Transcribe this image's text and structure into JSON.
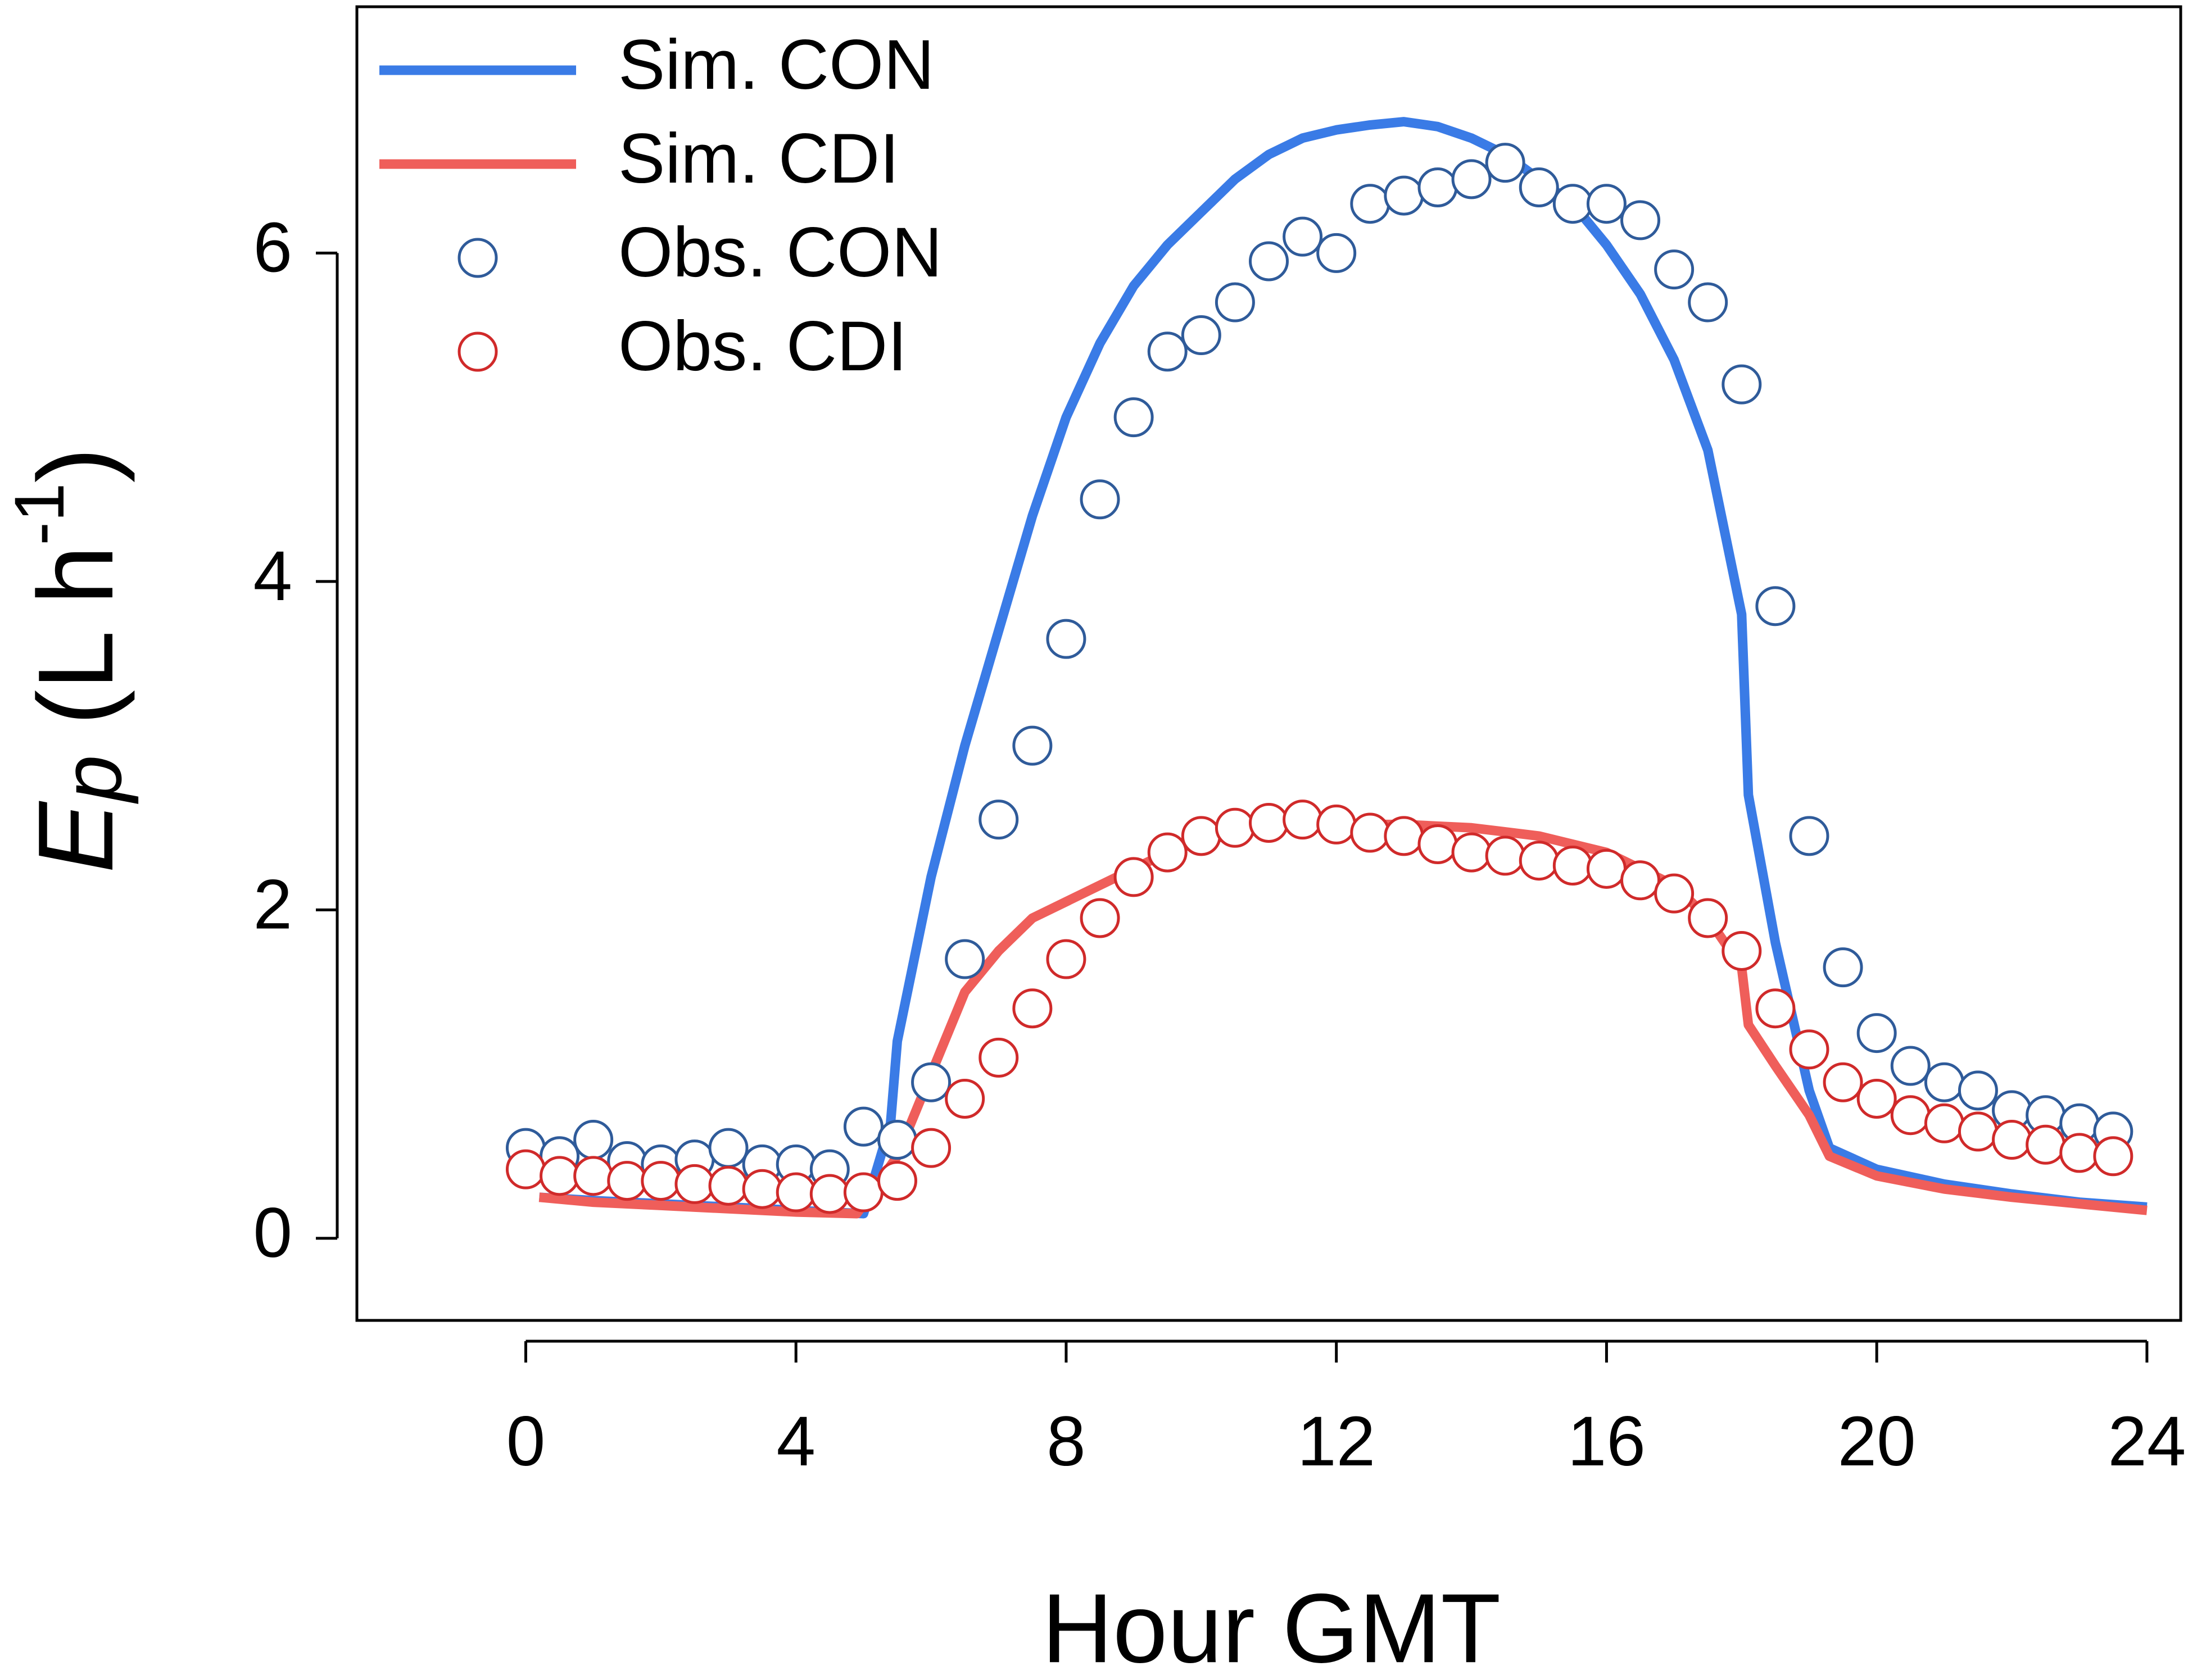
{
  "chart_data": {
    "type": "line",
    "xlabel": "Hour GMT",
    "ylabel": [
      "E",
      "p",
      " (L h",
      "-1",
      ")"
    ],
    "xlim": [
      -2.5,
      24.5
    ],
    "ylim": [
      -0.5,
      7.5
    ],
    "xticks": [
      0,
      4,
      8,
      12,
      16,
      20,
      24
    ],
    "yticks": [
      0,
      2,
      4,
      6
    ],
    "legend": "upper left",
    "series": [
      {
        "name": "Sim. CON",
        "type": "line",
        "color": "#3a7be6",
        "x": [
          0.2,
          1,
          2,
          3,
          4,
          5,
          5.4,
          5.5,
          6,
          6.5,
          7,
          7.5,
          8,
          8.5,
          9,
          9.5,
          10,
          10.5,
          11,
          11.5,
          12,
          12.5,
          13,
          13.5,
          14,
          14.5,
          15,
          15.5,
          16,
          16.5,
          17,
          17.5,
          18,
          18.1,
          18.5,
          19,
          19.3,
          20,
          21,
          22,
          23,
          24
        ],
        "values": [
          0.25,
          0.23,
          0.21,
          0.19,
          0.17,
          0.15,
          0.7,
          1.2,
          2.2,
          3.0,
          3.7,
          4.4,
          5.0,
          5.45,
          5.8,
          6.05,
          6.25,
          6.45,
          6.6,
          6.7,
          6.75,
          6.78,
          6.8,
          6.77,
          6.7,
          6.6,
          6.45,
          6.3,
          6.05,
          5.75,
          5.35,
          4.8,
          3.8,
          2.7,
          1.8,
          0.9,
          0.55,
          0.42,
          0.33,
          0.27,
          0.22,
          0.19
        ]
      },
      {
        "name": "Sim. CDI",
        "type": "line",
        "color": "#ef5e5a",
        "x": [
          0.2,
          1,
          2,
          3,
          4,
          4.9,
          5.5,
          6,
          6.5,
          7,
          7.5,
          8,
          8.5,
          9,
          9.5,
          10,
          11,
          12,
          13,
          14,
          15,
          16,
          17,
          17.5,
          18,
          18.1,
          18.5,
          19,
          19.3,
          20,
          21,
          22,
          23,
          24
        ],
        "values": [
          0.25,
          0.22,
          0.2,
          0.18,
          0.16,
          0.15,
          0.5,
          1.0,
          1.5,
          1.75,
          1.95,
          2.05,
          2.15,
          2.25,
          2.35,
          2.42,
          2.5,
          2.52,
          2.52,
          2.5,
          2.45,
          2.35,
          2.15,
          1.95,
          1.65,
          1.3,
          1.05,
          0.75,
          0.5,
          0.38,
          0.3,
          0.25,
          0.21,
          0.17
        ]
      },
      {
        "name": "Obs. CON",
        "type": "scatter",
        "color": "#2f5b9a",
        "x": [
          0,
          0.5,
          1,
          1.5,
          2,
          2.5,
          3,
          3.5,
          4,
          4.5,
          5,
          5.5,
          6,
          6.5,
          7,
          7.5,
          8,
          8.5,
          9,
          9.5,
          10,
          10.5,
          11,
          11.5,
          12,
          12.5,
          13,
          13.5,
          14,
          14.5,
          15,
          15.5,
          16,
          16.5,
          17,
          17.5,
          18,
          18.5,
          19,
          19.5,
          20,
          20.5,
          21,
          21.5,
          22,
          22.5,
          23,
          23.5
        ],
        "values": [
          0.55,
          0.5,
          0.6,
          0.47,
          0.45,
          0.48,
          0.55,
          0.45,
          0.45,
          0.42,
          0.68,
          0.6,
          0.95,
          1.7,
          2.55,
          3.0,
          3.65,
          4.5,
          5.0,
          5.4,
          5.5,
          5.7,
          5.95,
          6.1,
          6.0,
          6.3,
          6.35,
          6.4,
          6.45,
          6.55,
          6.4,
          6.3,
          6.3,
          6.2,
          5.9,
          5.7,
          5.2,
          3.85,
          2.45,
          1.65,
          1.25,
          1.05,
          0.95,
          0.9,
          0.78,
          0.75,
          0.7,
          0.65
        ]
      },
      {
        "name": "Obs. CDI",
        "type": "scatter",
        "color": "#d02a2a",
        "x": [
          0,
          0.5,
          1,
          1.5,
          2,
          2.5,
          3,
          3.5,
          4,
          4.5,
          5,
          5.5,
          6,
          6.5,
          7,
          7.5,
          8,
          8.5,
          9,
          9.5,
          10,
          10.5,
          11,
          11.5,
          12,
          12.5,
          13,
          13.5,
          14,
          14.5,
          15,
          15.5,
          16,
          16.5,
          17,
          17.5,
          18,
          18.5,
          19,
          19.5,
          20,
          20.5,
          21,
          21.5,
          22,
          22.5,
          23,
          23.5
        ],
        "values": [
          0.42,
          0.38,
          0.38,
          0.35,
          0.35,
          0.33,
          0.32,
          0.3,
          0.28,
          0.27,
          0.28,
          0.35,
          0.55,
          0.85,
          1.1,
          1.4,
          1.7,
          1.95,
          2.2,
          2.35,
          2.45,
          2.5,
          2.53,
          2.55,
          2.52,
          2.47,
          2.45,
          2.4,
          2.35,
          2.33,
          2.3,
          2.27,
          2.25,
          2.18,
          2.1,
          1.95,
          1.75,
          1.4,
          1.15,
          0.95,
          0.85,
          0.75,
          0.7,
          0.65,
          0.6,
          0.57,
          0.52,
          0.5
        ]
      }
    ]
  }
}
